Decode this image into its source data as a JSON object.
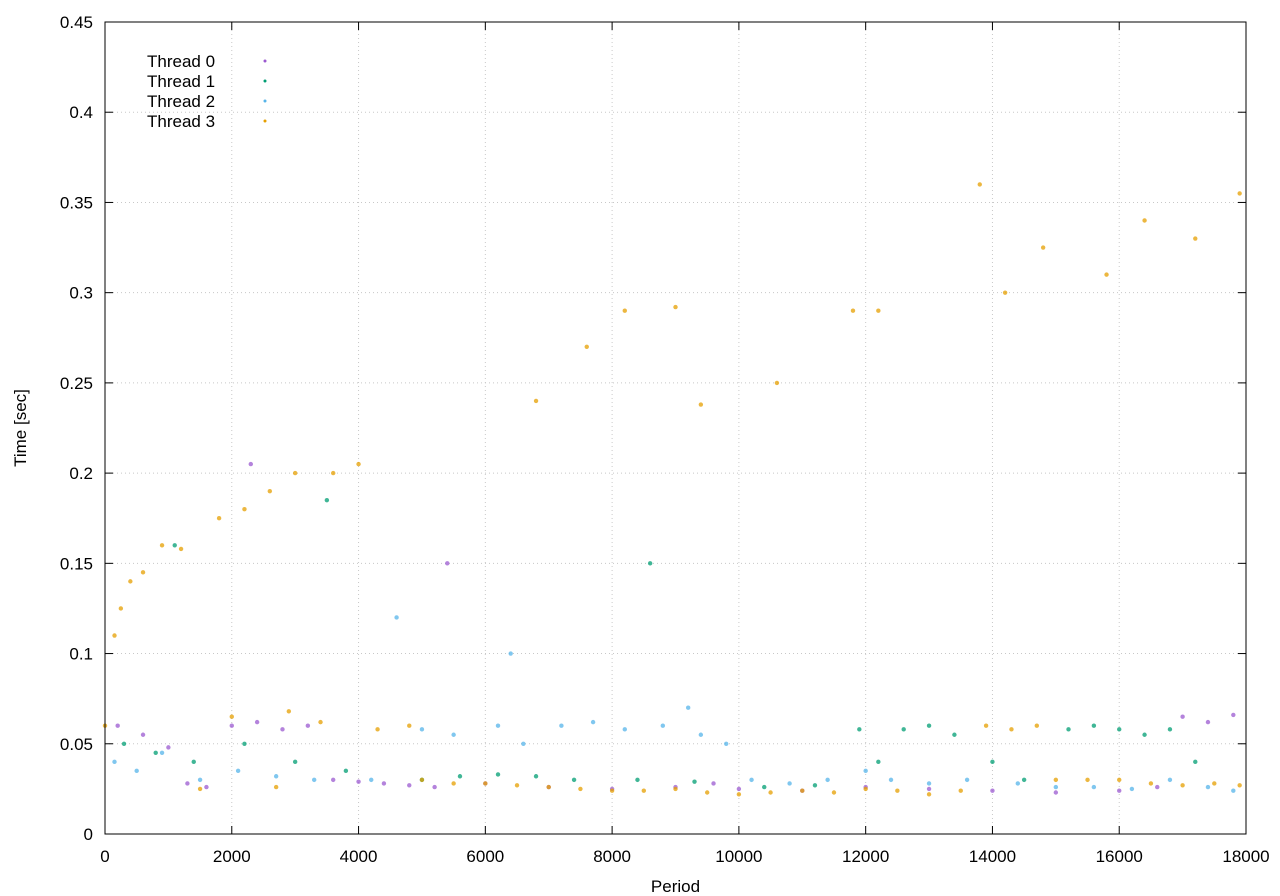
{
  "chart_data": {
    "type": "scatter",
    "title": "",
    "xlabel": "Period",
    "ylabel": "Time [sec]",
    "xlim": [
      0,
      18000
    ],
    "ylim": [
      0,
      0.45
    ],
    "x_ticks": [
      0,
      2000,
      4000,
      6000,
      8000,
      10000,
      12000,
      14000,
      16000,
      18000
    ],
    "x_tick_labels": [
      "0",
      "2000",
      "4000",
      "6000",
      "8000",
      "10000",
      "12000",
      "14000",
      "16000",
      "18000"
    ],
    "y_ticks": [
      0,
      0.05,
      0.1,
      0.15,
      0.2,
      0.25,
      0.3,
      0.35,
      0.4,
      0.45
    ],
    "y_tick_labels": [
      "0",
      "0.05",
      "0.1",
      "0.15",
      "0.2",
      "0.25",
      "0.3",
      "0.35",
      "0.4",
      "0.45"
    ],
    "grid": true,
    "legend_position": "top-left",
    "series": [
      {
        "name": "Thread 0",
        "color": "#9b59d0",
        "points": [
          [
            200,
            0.06
          ],
          [
            600,
            0.055
          ],
          [
            1000,
            0.048
          ],
          [
            1300,
            0.028
          ],
          [
            1600,
            0.026
          ],
          [
            2000,
            0.06
          ],
          [
            2400,
            0.062
          ],
          [
            2800,
            0.058
          ],
          [
            3200,
            0.06
          ],
          [
            3600,
            0.03
          ],
          [
            4000,
            0.029
          ],
          [
            4400,
            0.028
          ],
          [
            4800,
            0.027
          ],
          [
            5200,
            0.026
          ],
          [
            6000,
            0.028
          ],
          [
            7000,
            0.026
          ],
          [
            8000,
            0.025
          ],
          [
            9000,
            0.026
          ],
          [
            9600,
            0.028
          ],
          [
            10000,
            0.025
          ],
          [
            11000,
            0.024
          ],
          [
            12000,
            0.026
          ],
          [
            13000,
            0.025
          ],
          [
            14000,
            0.024
          ],
          [
            15000,
            0.023
          ],
          [
            16000,
            0.024
          ],
          [
            16600,
            0.026
          ],
          [
            17000,
            0.065
          ],
          [
            17400,
            0.062
          ],
          [
            17800,
            0.066
          ],
          [
            2300,
            0.205
          ],
          [
            5400,
            0.15
          ]
        ]
      },
      {
        "name": "Thread 1",
        "color": "#009e73",
        "points": [
          [
            300,
            0.05
          ],
          [
            800,
            0.045
          ],
          [
            1400,
            0.04
          ],
          [
            2200,
            0.05
          ],
          [
            3000,
            0.04
          ],
          [
            3800,
            0.035
          ],
          [
            5000,
            0.03
          ],
          [
            5600,
            0.032
          ],
          [
            6200,
            0.033
          ],
          [
            6800,
            0.032
          ],
          [
            7400,
            0.03
          ],
          [
            8400,
            0.03
          ],
          [
            9300,
            0.029
          ],
          [
            10400,
            0.026
          ],
          [
            11200,
            0.027
          ],
          [
            11900,
            0.058
          ],
          [
            12200,
            0.04
          ],
          [
            12600,
            0.058
          ],
          [
            13000,
            0.06
          ],
          [
            13400,
            0.055
          ],
          [
            14000,
            0.04
          ],
          [
            14500,
            0.03
          ],
          [
            15200,
            0.058
          ],
          [
            15600,
            0.06
          ],
          [
            16000,
            0.058
          ],
          [
            16400,
            0.055
          ],
          [
            16800,
            0.058
          ],
          [
            17200,
            0.04
          ],
          [
            1100,
            0.16
          ],
          [
            3500,
            0.185
          ],
          [
            8600,
            0.15
          ]
        ]
      },
      {
        "name": "Thread 2",
        "color": "#56b4e9",
        "points": [
          [
            150,
            0.04
          ],
          [
            500,
            0.035
          ],
          [
            900,
            0.045
          ],
          [
            1500,
            0.03
          ],
          [
            2100,
            0.035
          ],
          [
            2700,
            0.032
          ],
          [
            3300,
            0.03
          ],
          [
            4200,
            0.03
          ],
          [
            5000,
            0.058
          ],
          [
            5500,
            0.055
          ],
          [
            6200,
            0.06
          ],
          [
            6600,
            0.05
          ],
          [
            7200,
            0.06
          ],
          [
            7700,
            0.062
          ],
          [
            8200,
            0.058
          ],
          [
            8800,
            0.06
          ],
          [
            9400,
            0.055
          ],
          [
            9800,
            0.05
          ],
          [
            10200,
            0.03
          ],
          [
            10800,
            0.028
          ],
          [
            11400,
            0.03
          ],
          [
            12000,
            0.035
          ],
          [
            12400,
            0.03
          ],
          [
            13000,
            0.028
          ],
          [
            13600,
            0.03
          ],
          [
            14400,
            0.028
          ],
          [
            15000,
            0.026
          ],
          [
            15600,
            0.026
          ],
          [
            16200,
            0.025
          ],
          [
            16800,
            0.03
          ],
          [
            17400,
            0.026
          ],
          [
            17800,
            0.024
          ],
          [
            4600,
            0.12
          ],
          [
            6400,
            0.1
          ],
          [
            9200,
            0.07
          ]
        ]
      },
      {
        "name": "Thread 3",
        "color": "#e69f00",
        "points": [
          [
            0,
            0.06
          ],
          [
            150,
            0.11
          ],
          [
            250,
            0.125
          ],
          [
            400,
            0.14
          ],
          [
            600,
            0.145
          ],
          [
            900,
            0.16
          ],
          [
            1200,
            0.158
          ],
          [
            1500,
            0.025
          ],
          [
            1800,
            0.175
          ],
          [
            2200,
            0.18
          ],
          [
            2600,
            0.19
          ],
          [
            2700,
            0.026
          ],
          [
            3000,
            0.2
          ],
          [
            3600,
            0.2
          ],
          [
            4000,
            0.205
          ],
          [
            4800,
            0.06
          ],
          [
            5000,
            0.03
          ],
          [
            5500,
            0.028
          ],
          [
            6000,
            0.028
          ],
          [
            6500,
            0.027
          ],
          [
            7000,
            0.026
          ],
          [
            7500,
            0.025
          ],
          [
            8000,
            0.024
          ],
          [
            8500,
            0.024
          ],
          [
            9000,
            0.025
          ],
          [
            9500,
            0.023
          ],
          [
            10000,
            0.022
          ],
          [
            10500,
            0.023
          ],
          [
            11000,
            0.024
          ],
          [
            11500,
            0.023
          ],
          [
            12000,
            0.025
          ],
          [
            12500,
            0.024
          ],
          [
            13000,
            0.022
          ],
          [
            13500,
            0.024
          ],
          [
            13900,
            0.06
          ],
          [
            14300,
            0.058
          ],
          [
            14700,
            0.06
          ],
          [
            15000,
            0.03
          ],
          [
            15500,
            0.03
          ],
          [
            16000,
            0.03
          ],
          [
            16500,
            0.028
          ],
          [
            17000,
            0.027
          ],
          [
            17500,
            0.028
          ],
          [
            17900,
            0.027
          ],
          [
            2000,
            0.065
          ],
          [
            2900,
            0.068
          ],
          [
            3400,
            0.062
          ],
          [
            4300,
            0.058
          ],
          [
            6800,
            0.24
          ],
          [
            7600,
            0.27
          ],
          [
            8200,
            0.29
          ],
          [
            9000,
            0.292
          ],
          [
            10600,
            0.25
          ],
          [
            12200,
            0.29
          ],
          [
            13800,
            0.36
          ],
          [
            14800,
            0.325
          ],
          [
            15800,
            0.31
          ],
          [
            16400,
            0.34
          ],
          [
            17200,
            0.33
          ],
          [
            17900,
            0.355
          ],
          [
            9400,
            0.238
          ],
          [
            11800,
            0.29
          ],
          [
            14200,
            0.3
          ]
        ]
      }
    ]
  }
}
